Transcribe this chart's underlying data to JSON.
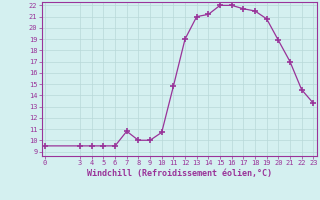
{
  "x": [
    0,
    3,
    4,
    5,
    6,
    7,
    8,
    9,
    10,
    11,
    12,
    13,
    14,
    15,
    16,
    17,
    18,
    19,
    20,
    21,
    22,
    23
  ],
  "y": [
    9.5,
    9.5,
    9.5,
    9.5,
    9.5,
    10.8,
    10.0,
    10.0,
    10.7,
    14.8,
    19.0,
    21.0,
    21.2,
    22.0,
    22.0,
    21.7,
    21.5,
    20.8,
    18.9,
    17.0,
    14.5,
    13.3
  ],
  "line_color": "#993399",
  "marker": "+",
  "marker_size": 4,
  "xlim": [
    0,
    23
  ],
  "ylim_min": 9.0,
  "ylim_max": 22.3,
  "yticks": [
    9,
    10,
    11,
    12,
    13,
    14,
    15,
    16,
    17,
    18,
    19,
    20,
    21,
    22
  ],
  "xticks": [
    0,
    3,
    4,
    5,
    6,
    7,
    8,
    9,
    10,
    11,
    12,
    13,
    14,
    15,
    16,
    17,
    18,
    19,
    20,
    21,
    22,
    23
  ],
  "xlabel": "Windchill (Refroidissement éolien,°C)",
  "bg_color": "#d4f0f0",
  "grid_color": "#b8d8d8",
  "spine_color": "#993399",
  "tick_color": "#993399",
  "label_color": "#993399",
  "tick_fontsize": 5.0,
  "xlabel_fontsize": 6.0
}
